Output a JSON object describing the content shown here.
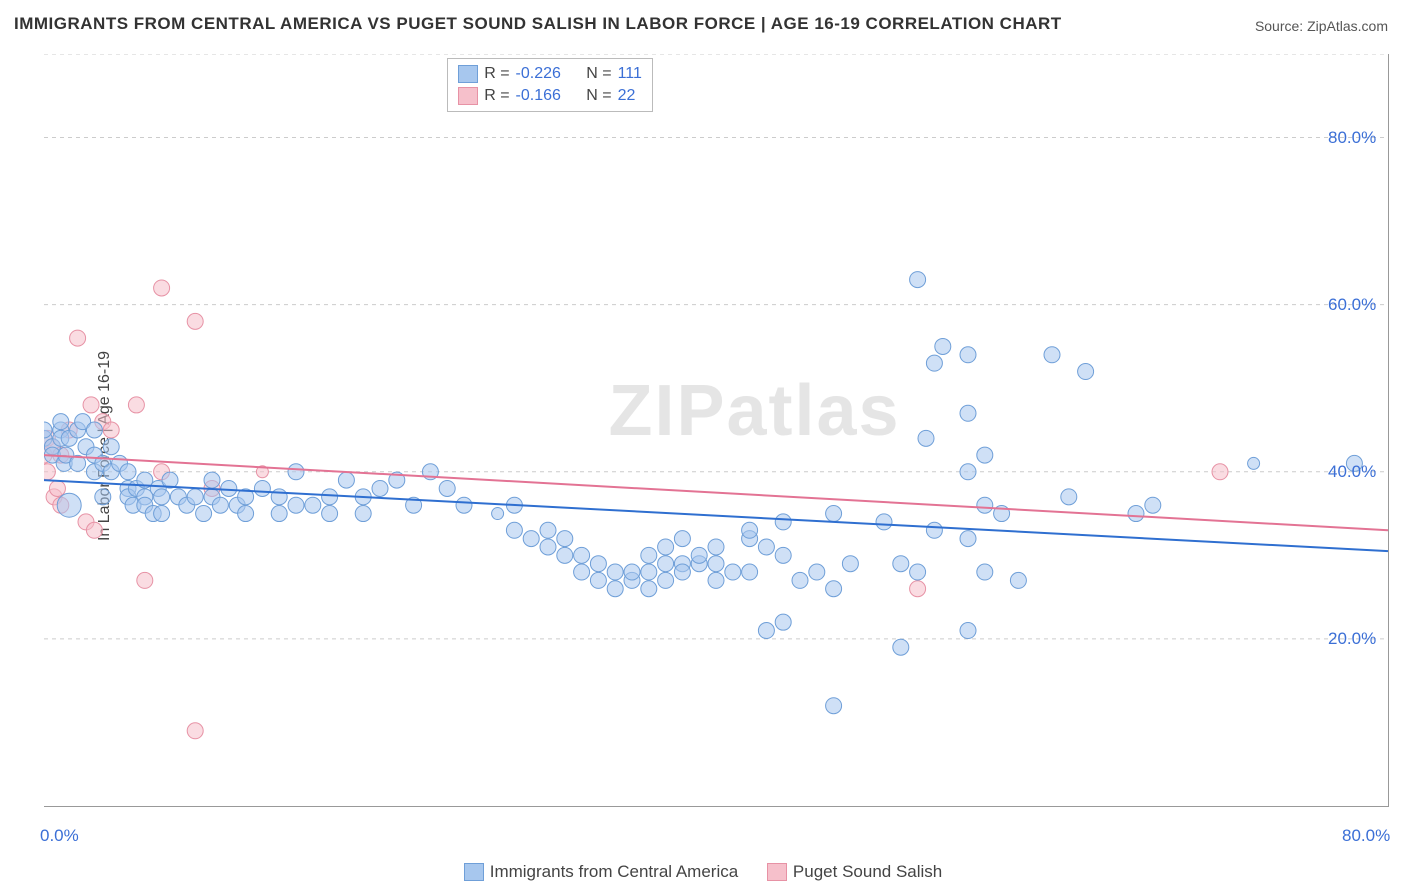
{
  "title": "IMMIGRANTS FROM CENTRAL AMERICA VS PUGET SOUND SALISH IN LABOR FORCE | AGE 16-19 CORRELATION CHART",
  "source": "Source: ZipAtlas.com",
  "watermark": "ZIPatlas",
  "chart": {
    "type": "scatter",
    "ylabel": "In Labor Force | Age 16-19",
    "xlim": [
      0,
      80
    ],
    "ylim": [
      0,
      90
    ],
    "xticks": [
      0,
      10,
      20,
      30,
      40,
      50,
      60,
      70,
      80
    ],
    "xticklabels": {
      "0": "0.0%",
      "80": "80.0%"
    },
    "ygrid": [
      20,
      40,
      60,
      80,
      90
    ],
    "yticklabels": {
      "20": "20.0%",
      "40": "40.0%",
      "60": "60.0%",
      "80": "80.0%"
    },
    "background": "#ffffff",
    "grid_color": "#cccccc",
    "axis_color": "#999999",
    "marker_radius": 8,
    "marker_radius_large": 12,
    "line_width": 2,
    "series": [
      {
        "name": "Immigrants from Central America",
        "fill": "#a7c7ee",
        "stroke": "#6f9fd8",
        "line": "#2f6fd0",
        "R": "-0.226",
        "N": "111",
        "trend": {
          "x1": 0,
          "y1": 39,
          "x2": 80,
          "y2": 30.5
        },
        "points": [
          [
            0,
            44
          ],
          [
            0,
            45
          ],
          [
            0.5,
            43
          ],
          [
            0.5,
            42
          ],
          [
            1,
            45
          ],
          [
            1,
            46
          ],
          [
            1,
            44
          ],
          [
            1.2,
            41
          ],
          [
            1.3,
            42
          ],
          [
            1.5,
            44
          ],
          [
            1.5,
            36,
            12
          ],
          [
            2,
            41
          ],
          [
            2,
            45
          ],
          [
            2.3,
            46
          ],
          [
            2.5,
            43
          ],
          [
            3,
            42
          ],
          [
            3,
            45
          ],
          [
            3,
            40
          ],
          [
            3.5,
            41
          ],
          [
            3.5,
            37
          ],
          [
            4,
            43
          ],
          [
            4,
            40
          ],
          [
            4.5,
            41
          ],
          [
            5,
            40
          ],
          [
            5,
            38
          ],
          [
            5,
            37
          ],
          [
            5.3,
            36
          ],
          [
            5.5,
            38
          ],
          [
            6,
            37
          ],
          [
            6,
            36
          ],
          [
            6,
            39
          ],
          [
            6.5,
            35
          ],
          [
            6.8,
            38
          ],
          [
            7,
            37
          ],
          [
            7,
            35
          ],
          [
            7.5,
            39
          ],
          [
            8,
            37
          ],
          [
            8.5,
            36
          ],
          [
            9,
            37
          ],
          [
            9.5,
            35
          ],
          [
            10,
            39
          ],
          [
            10,
            37
          ],
          [
            10.5,
            36
          ],
          [
            11,
            38
          ],
          [
            11.5,
            36
          ],
          [
            12,
            37
          ],
          [
            12,
            35
          ],
          [
            13,
            38
          ],
          [
            14,
            37
          ],
          [
            14,
            35
          ],
          [
            15,
            40
          ],
          [
            15,
            36
          ],
          [
            16,
            36
          ],
          [
            17,
            35
          ],
          [
            17,
            37
          ],
          [
            18,
            39
          ],
          [
            19,
            37
          ],
          [
            19,
            35
          ],
          [
            20,
            38
          ],
          [
            21,
            39
          ],
          [
            22,
            36
          ],
          [
            23,
            40
          ],
          [
            24,
            38
          ],
          [
            25,
            36
          ],
          [
            27,
            35,
            6
          ],
          [
            28,
            36
          ],
          [
            28,
            33
          ],
          [
            29,
            32
          ],
          [
            30,
            33
          ],
          [
            30,
            31
          ],
          [
            31,
            30
          ],
          [
            31,
            32
          ],
          [
            32,
            28
          ],
          [
            32,
            30
          ],
          [
            33,
            29
          ],
          [
            33,
            27
          ],
          [
            34,
            28
          ],
          [
            34,
            26
          ],
          [
            35,
            27
          ],
          [
            35,
            28
          ],
          [
            36,
            28
          ],
          [
            36,
            30
          ],
          [
            36,
            26
          ],
          [
            37,
            29
          ],
          [
            37,
            27
          ],
          [
            37,
            31
          ],
          [
            38,
            29
          ],
          [
            38,
            28
          ],
          [
            38,
            32
          ],
          [
            39,
            29
          ],
          [
            39,
            30
          ],
          [
            40,
            27
          ],
          [
            40,
            29
          ],
          [
            40,
            31
          ],
          [
            41,
            28
          ],
          [
            42,
            32
          ],
          [
            42,
            28
          ],
          [
            42,
            33
          ],
          [
            43,
            31
          ],
          [
            43,
            21
          ],
          [
            44,
            34
          ],
          [
            44,
            30
          ],
          [
            44,
            22
          ],
          [
            45,
            27
          ],
          [
            46,
            28
          ],
          [
            47,
            26
          ],
          [
            47,
            12
          ],
          [
            47,
            35
          ],
          [
            48,
            29
          ],
          [
            50,
            34
          ],
          [
            51,
            29
          ],
          [
            51,
            19
          ],
          [
            52,
            28
          ],
          [
            52,
            63
          ],
          [
            52.5,
            44
          ],
          [
            53,
            33
          ],
          [
            53,
            53
          ],
          [
            53.5,
            55
          ],
          [
            55,
            54
          ],
          [
            55,
            47
          ],
          [
            55,
            40
          ],
          [
            55,
            32
          ],
          [
            55,
            21
          ],
          [
            56,
            42
          ],
          [
            56,
            36
          ],
          [
            56,
            28
          ],
          [
            57,
            35
          ],
          [
            58,
            27
          ],
          [
            60,
            54
          ],
          [
            61,
            37
          ],
          [
            62,
            52
          ],
          [
            65,
            35
          ],
          [
            66,
            36
          ],
          [
            72,
            41,
            6
          ],
          [
            78,
            41
          ]
        ]
      },
      {
        "name": "Puget Sound Salish",
        "fill": "#f6c0cb",
        "stroke": "#e792a5",
        "line": "#e37394",
        "R": "-0.166",
        "N": "22",
        "trend": {
          "x1": 0,
          "y1": 42,
          "x2": 80,
          "y2": 33
        },
        "points": [
          [
            0,
            42
          ],
          [
            0.2,
            44
          ],
          [
            0.2,
            40
          ],
          [
            0.5,
            43
          ],
          [
            0.6,
            37
          ],
          [
            0.8,
            38
          ],
          [
            1,
            42
          ],
          [
            1,
            36
          ],
          [
            1.5,
            45
          ],
          [
            2,
            56
          ],
          [
            2.5,
            34
          ],
          [
            2.8,
            48
          ],
          [
            3,
            33
          ],
          [
            3.5,
            46
          ],
          [
            4,
            45
          ],
          [
            5.5,
            48
          ],
          [
            6,
            27
          ],
          [
            7,
            40
          ],
          [
            7,
            62
          ],
          [
            9,
            58
          ],
          [
            9,
            9
          ],
          [
            10,
            38
          ],
          [
            13,
            40,
            6
          ],
          [
            52,
            26
          ],
          [
            70,
            40
          ]
        ]
      }
    ]
  },
  "legend_top": {
    "cols": [
      "R =",
      "N ="
    ]
  },
  "legend_bottom": [
    "Immigrants from Central America",
    "Puget Sound Salish"
  ]
}
